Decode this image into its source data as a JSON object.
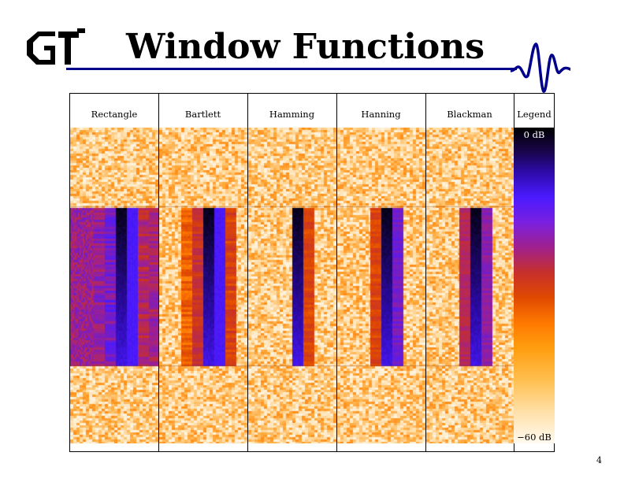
{
  "slide": {
    "title": "Window Functions",
    "page_number": "4",
    "logo_text": "GT"
  },
  "table": {
    "columns": [
      "Rectangle",
      "Bartlett",
      "Hamming",
      "Hanning",
      "Blackman",
      "Legend"
    ]
  },
  "legend": {
    "top_label": "0 dB",
    "bottom_label": "−60 dB"
  },
  "colors": {
    "accent_rule": "#00008b",
    "colormap": [
      "#000000",
      "#2d0aa8",
      "#4a1aff",
      "#a0208c",
      "#c8302a",
      "#ff7a00",
      "#ffbf50",
      "#fffaf0"
    ]
  },
  "icons": {
    "logo": "gt-logo-icon",
    "wavelet": "wavelet-icon"
  }
}
